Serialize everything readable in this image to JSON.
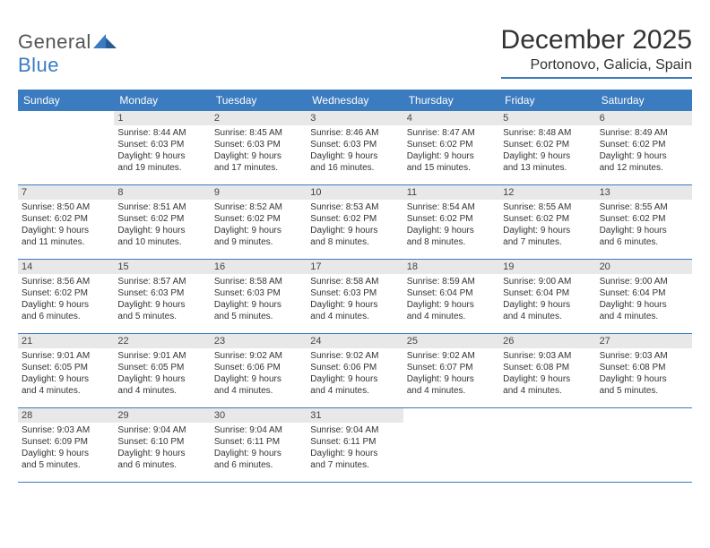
{
  "brand": {
    "word1": "General",
    "word2": "Blue"
  },
  "title": "December 2025",
  "location": "Portonovo, Galicia, Spain",
  "colors": {
    "accent": "#3b7bbf",
    "daynum_bg": "#e8e8e8",
    "text": "#333333",
    "bg": "#ffffff"
  },
  "days_of_week": [
    "Sunday",
    "Monday",
    "Tuesday",
    "Wednesday",
    "Thursday",
    "Friday",
    "Saturday"
  ],
  "weeks": [
    [
      {
        "n": "",
        "l1": "",
        "l2": "",
        "l3": "",
        "l4": ""
      },
      {
        "n": "1",
        "l1": "Sunrise: 8:44 AM",
        "l2": "Sunset: 6:03 PM",
        "l3": "Daylight: 9 hours",
        "l4": "and 19 minutes."
      },
      {
        "n": "2",
        "l1": "Sunrise: 8:45 AM",
        "l2": "Sunset: 6:03 PM",
        "l3": "Daylight: 9 hours",
        "l4": "and 17 minutes."
      },
      {
        "n": "3",
        "l1": "Sunrise: 8:46 AM",
        "l2": "Sunset: 6:03 PM",
        "l3": "Daylight: 9 hours",
        "l4": "and 16 minutes."
      },
      {
        "n": "4",
        "l1": "Sunrise: 8:47 AM",
        "l2": "Sunset: 6:02 PM",
        "l3": "Daylight: 9 hours",
        "l4": "and 15 minutes."
      },
      {
        "n": "5",
        "l1": "Sunrise: 8:48 AM",
        "l2": "Sunset: 6:02 PM",
        "l3": "Daylight: 9 hours",
        "l4": "and 13 minutes."
      },
      {
        "n": "6",
        "l1": "Sunrise: 8:49 AM",
        "l2": "Sunset: 6:02 PM",
        "l3": "Daylight: 9 hours",
        "l4": "and 12 minutes."
      }
    ],
    [
      {
        "n": "7",
        "l1": "Sunrise: 8:50 AM",
        "l2": "Sunset: 6:02 PM",
        "l3": "Daylight: 9 hours",
        "l4": "and 11 minutes."
      },
      {
        "n": "8",
        "l1": "Sunrise: 8:51 AM",
        "l2": "Sunset: 6:02 PM",
        "l3": "Daylight: 9 hours",
        "l4": "and 10 minutes."
      },
      {
        "n": "9",
        "l1": "Sunrise: 8:52 AM",
        "l2": "Sunset: 6:02 PM",
        "l3": "Daylight: 9 hours",
        "l4": "and 9 minutes."
      },
      {
        "n": "10",
        "l1": "Sunrise: 8:53 AM",
        "l2": "Sunset: 6:02 PM",
        "l3": "Daylight: 9 hours",
        "l4": "and 8 minutes."
      },
      {
        "n": "11",
        "l1": "Sunrise: 8:54 AM",
        "l2": "Sunset: 6:02 PM",
        "l3": "Daylight: 9 hours",
        "l4": "and 8 minutes."
      },
      {
        "n": "12",
        "l1": "Sunrise: 8:55 AM",
        "l2": "Sunset: 6:02 PM",
        "l3": "Daylight: 9 hours",
        "l4": "and 7 minutes."
      },
      {
        "n": "13",
        "l1": "Sunrise: 8:55 AM",
        "l2": "Sunset: 6:02 PM",
        "l3": "Daylight: 9 hours",
        "l4": "and 6 minutes."
      }
    ],
    [
      {
        "n": "14",
        "l1": "Sunrise: 8:56 AM",
        "l2": "Sunset: 6:02 PM",
        "l3": "Daylight: 9 hours",
        "l4": "and 6 minutes."
      },
      {
        "n": "15",
        "l1": "Sunrise: 8:57 AM",
        "l2": "Sunset: 6:03 PM",
        "l3": "Daylight: 9 hours",
        "l4": "and 5 minutes."
      },
      {
        "n": "16",
        "l1": "Sunrise: 8:58 AM",
        "l2": "Sunset: 6:03 PM",
        "l3": "Daylight: 9 hours",
        "l4": "and 5 minutes."
      },
      {
        "n": "17",
        "l1": "Sunrise: 8:58 AM",
        "l2": "Sunset: 6:03 PM",
        "l3": "Daylight: 9 hours",
        "l4": "and 4 minutes."
      },
      {
        "n": "18",
        "l1": "Sunrise: 8:59 AM",
        "l2": "Sunset: 6:04 PM",
        "l3": "Daylight: 9 hours",
        "l4": "and 4 minutes."
      },
      {
        "n": "19",
        "l1": "Sunrise: 9:00 AM",
        "l2": "Sunset: 6:04 PM",
        "l3": "Daylight: 9 hours",
        "l4": "and 4 minutes."
      },
      {
        "n": "20",
        "l1": "Sunrise: 9:00 AM",
        "l2": "Sunset: 6:04 PM",
        "l3": "Daylight: 9 hours",
        "l4": "and 4 minutes."
      }
    ],
    [
      {
        "n": "21",
        "l1": "Sunrise: 9:01 AM",
        "l2": "Sunset: 6:05 PM",
        "l3": "Daylight: 9 hours",
        "l4": "and 4 minutes."
      },
      {
        "n": "22",
        "l1": "Sunrise: 9:01 AM",
        "l2": "Sunset: 6:05 PM",
        "l3": "Daylight: 9 hours",
        "l4": "and 4 minutes."
      },
      {
        "n": "23",
        "l1": "Sunrise: 9:02 AM",
        "l2": "Sunset: 6:06 PM",
        "l3": "Daylight: 9 hours",
        "l4": "and 4 minutes."
      },
      {
        "n": "24",
        "l1": "Sunrise: 9:02 AM",
        "l2": "Sunset: 6:06 PM",
        "l3": "Daylight: 9 hours",
        "l4": "and 4 minutes."
      },
      {
        "n": "25",
        "l1": "Sunrise: 9:02 AM",
        "l2": "Sunset: 6:07 PM",
        "l3": "Daylight: 9 hours",
        "l4": "and 4 minutes."
      },
      {
        "n": "26",
        "l1": "Sunrise: 9:03 AM",
        "l2": "Sunset: 6:08 PM",
        "l3": "Daylight: 9 hours",
        "l4": "and 4 minutes."
      },
      {
        "n": "27",
        "l1": "Sunrise: 9:03 AM",
        "l2": "Sunset: 6:08 PM",
        "l3": "Daylight: 9 hours",
        "l4": "and 5 minutes."
      }
    ],
    [
      {
        "n": "28",
        "l1": "Sunrise: 9:03 AM",
        "l2": "Sunset: 6:09 PM",
        "l3": "Daylight: 9 hours",
        "l4": "and 5 minutes."
      },
      {
        "n": "29",
        "l1": "Sunrise: 9:04 AM",
        "l2": "Sunset: 6:10 PM",
        "l3": "Daylight: 9 hours",
        "l4": "and 6 minutes."
      },
      {
        "n": "30",
        "l1": "Sunrise: 9:04 AM",
        "l2": "Sunset: 6:11 PM",
        "l3": "Daylight: 9 hours",
        "l4": "and 6 minutes."
      },
      {
        "n": "31",
        "l1": "Sunrise: 9:04 AM",
        "l2": "Sunset: 6:11 PM",
        "l3": "Daylight: 9 hours",
        "l4": "and 7 minutes."
      },
      {
        "n": "",
        "l1": "",
        "l2": "",
        "l3": "",
        "l4": ""
      },
      {
        "n": "",
        "l1": "",
        "l2": "",
        "l3": "",
        "l4": ""
      },
      {
        "n": "",
        "l1": "",
        "l2": "",
        "l3": "",
        "l4": ""
      }
    ]
  ]
}
